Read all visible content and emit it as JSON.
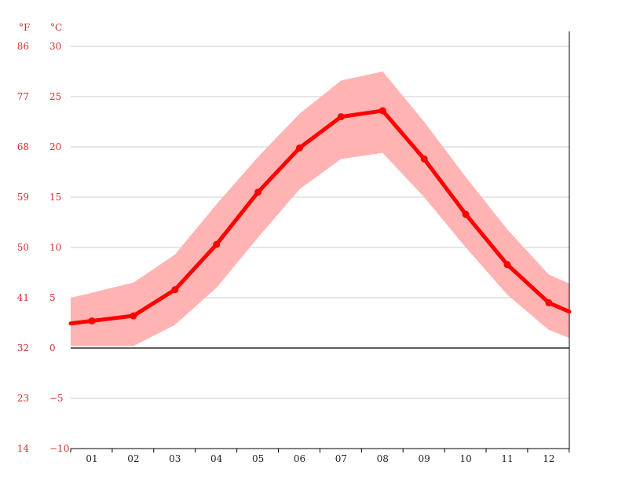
{
  "chart_data": {
    "type": "line",
    "title": "",
    "units": {
      "fahrenheit": "°F",
      "celsius": "°C"
    },
    "categories": [
      "01",
      "02",
      "03",
      "04",
      "05",
      "06",
      "07",
      "08",
      "09",
      "10",
      "11",
      "12"
    ],
    "y_ticks_c": [
      "30",
      "25",
      "20",
      "15",
      "10",
      "5",
      "0",
      "−5",
      "−10"
    ],
    "y_ticks_f": [
      "86",
      "77",
      "68",
      "59",
      "50",
      "41",
      "32",
      "23",
      "14"
    ],
    "ylim": [
      -10,
      30
    ],
    "grid": true,
    "colors": {
      "line": "#ff0000",
      "band": "#ffb3b3",
      "ticks": "#d03030"
    },
    "series": [
      {
        "values": [
          2.7,
          3.2,
          5.8,
          10.3,
          15.5,
          19.9,
          23.0,
          23.6,
          18.8,
          13.3,
          8.3,
          4.5
        ]
      },
      {
        "values": [
          5.5,
          6.5,
          9.3,
          14.3,
          19.0,
          23.3,
          26.6,
          27.5,
          22.5,
          17.0,
          11.8,
          7.3
        ]
      },
      {
        "values": [
          0.2,
          0.2,
          2.3,
          6.0,
          11.0,
          15.8,
          18.8,
          19.4,
          15.0,
          10.0,
          5.3,
          1.8
        ]
      }
    ]
  }
}
